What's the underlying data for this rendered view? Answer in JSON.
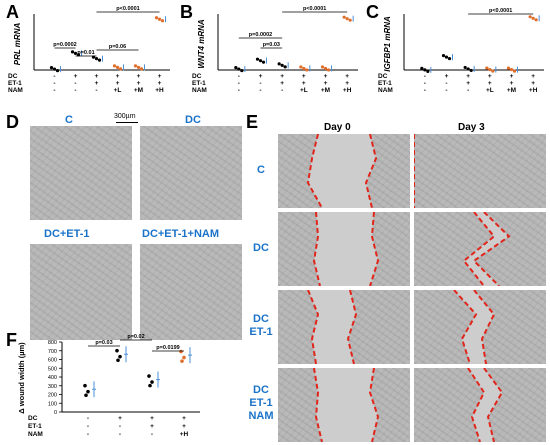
{
  "panels": {
    "A": "A",
    "B": "B",
    "C": "C",
    "D": "D",
    "E": "E",
    "F": "F"
  },
  "colors": {
    "accent_blue": "#1a73c9",
    "wound_edge_red": "#e1251b",
    "dot_black": "#000000",
    "dot_orange": "#e06d2a",
    "dot_light_blue": "#4a90d9"
  },
  "chart_data": [
    {
      "type": "scatter",
      "panel": "A",
      "ylabel": "PRL mRNA",
      "categories": [
        "1",
        "2",
        "3",
        "4",
        "5",
        "6"
      ],
      "rows": [
        {
          "label": "DC",
          "values": [
            "-",
            "+",
            "+",
            "+",
            "+",
            "+"
          ]
        },
        {
          "label": "ET-1",
          "values": [
            "-",
            "-",
            "+",
            "+",
            "+",
            "+"
          ]
        },
        {
          "label": "NAM",
          "values": [
            "-",
            "-",
            "-",
            "+L",
            "+M",
            "+H"
          ]
        }
      ],
      "pvalues": [
        "p=0.0002",
        "p=0.01",
        "p=0.06",
        "p<0.0001"
      ],
      "values": [
        0.5,
        9.5,
        6.5,
        1.5,
        1.5,
        29
      ]
    },
    {
      "type": "scatter",
      "panel": "B",
      "ylabel": "WNT4 mRNA",
      "categories": [
        "1",
        "2",
        "3",
        "4",
        "5",
        "6"
      ],
      "rows": [
        {
          "label": "DC",
          "values": [
            "-",
            "+",
            "+",
            "+",
            "+",
            "+"
          ]
        },
        {
          "label": "ET-1",
          "values": [
            "-",
            "-",
            "+",
            "+",
            "+",
            "+"
          ]
        },
        {
          "label": "NAM",
          "values": [
            "-",
            "-",
            "-",
            "+L",
            "+M",
            "+H"
          ]
        }
      ],
      "pvalues": [
        "p=0.0002",
        "p=0.03",
        "p<0.0001"
      ],
      "values": [
        0.6,
        6,
        3,
        1,
        1,
        33
      ]
    },
    {
      "type": "scatter",
      "panel": "C",
      "ylabel": "IGFBP1 mRNA",
      "categories": [
        "1",
        "2",
        "3",
        "4",
        "5",
        "6"
      ],
      "rows": [
        {
          "label": "DC",
          "values": [
            "-",
            "+",
            "+",
            "+",
            "+",
            "+"
          ]
        },
        {
          "label": "ET-1",
          "values": [
            "-",
            "-",
            "+",
            "+",
            "+",
            "+"
          ]
        },
        {
          "label": "NAM",
          "values": [
            "-",
            "-",
            "-",
            "+L",
            "+M",
            "+H"
          ]
        }
      ],
      "pvalues": [
        "p<0.0001"
      ],
      "values": [
        0.5,
        60,
        5,
        2,
        2,
        240
      ]
    },
    {
      "type": "scatter",
      "panel": "F",
      "ylabel": "Δ wound width (µm)",
      "yticks": [
        "0",
        "100",
        "200",
        "300",
        "400",
        "500",
        "600",
        "700",
        "800"
      ],
      "ylim": [
        0,
        800
      ],
      "categories": [
        "1",
        "2",
        "3",
        "4"
      ],
      "rows": [
        {
          "label": "DC",
          "values": [
            "-",
            "+",
            "+",
            "+"
          ]
        },
        {
          "label": "ET-1",
          "values": [
            "-",
            "-",
            "+",
            "+"
          ]
        },
        {
          "label": "NAM",
          "values": [
            "-",
            "-",
            "-",
            "+H"
          ]
        }
      ],
      "pvalues": [
        "p=0.03",
        "p=0.02",
        "p=0.0199"
      ],
      "series": [
        {
          "values": [
            260,
            660,
            370,
            650
          ]
        }
      ]
    }
  ],
  "panel_d": {
    "labels": [
      "C",
      "DC",
      "DC+ET-1",
      "DC+ET-1+NAM"
    ],
    "scale": "300µm"
  },
  "panel_e": {
    "columns": [
      "Day 0",
      "Day 3"
    ],
    "rows": [
      "C",
      "DC",
      "DC\nET-1",
      "DC\nET-1\nNAM"
    ]
  }
}
